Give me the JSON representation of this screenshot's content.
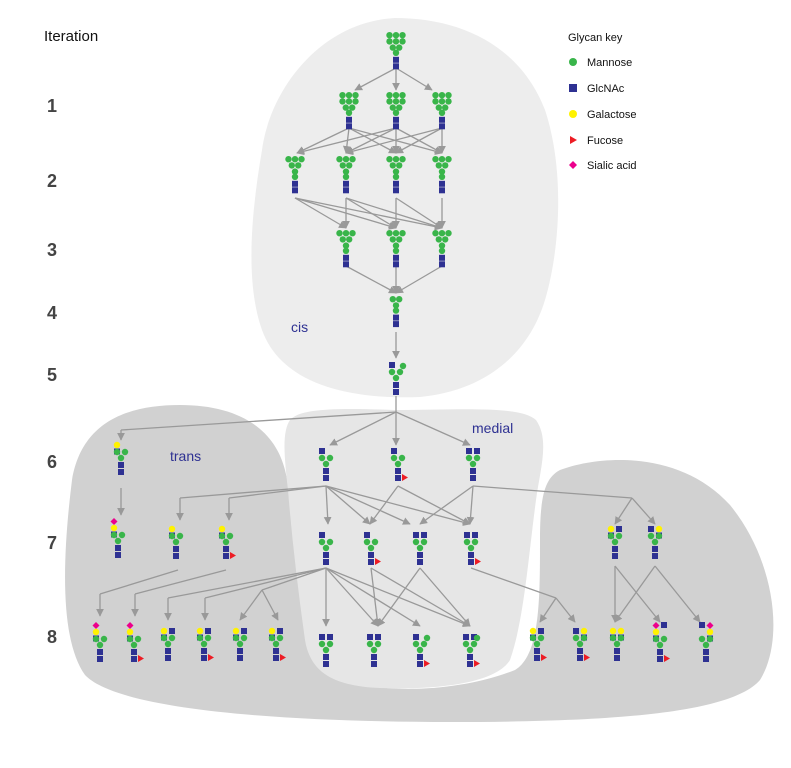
{
  "iteration_heading": "Iteration",
  "iterations": [
    "1",
    "2",
    "3",
    "4",
    "5",
    "6",
    "7",
    "8"
  ],
  "regions": {
    "cis": "cis",
    "medial": "medial",
    "trans": "trans"
  },
  "legend": {
    "title": "Glycan key",
    "items": [
      {
        "label": "Mannose",
        "color": "#39b54a",
        "shape": "circle"
      },
      {
        "label": "GlcNAc",
        "color": "#2e3192",
        "shape": "square"
      },
      {
        "label": "Galactose",
        "color": "#fff200",
        "shape": "circle"
      },
      {
        "label": "Fucose",
        "color": "#ed1c24",
        "shape": "triangle"
      },
      {
        "label": "Sialic acid",
        "color": "#ec008c",
        "shape": "diamond"
      }
    ]
  }
}
